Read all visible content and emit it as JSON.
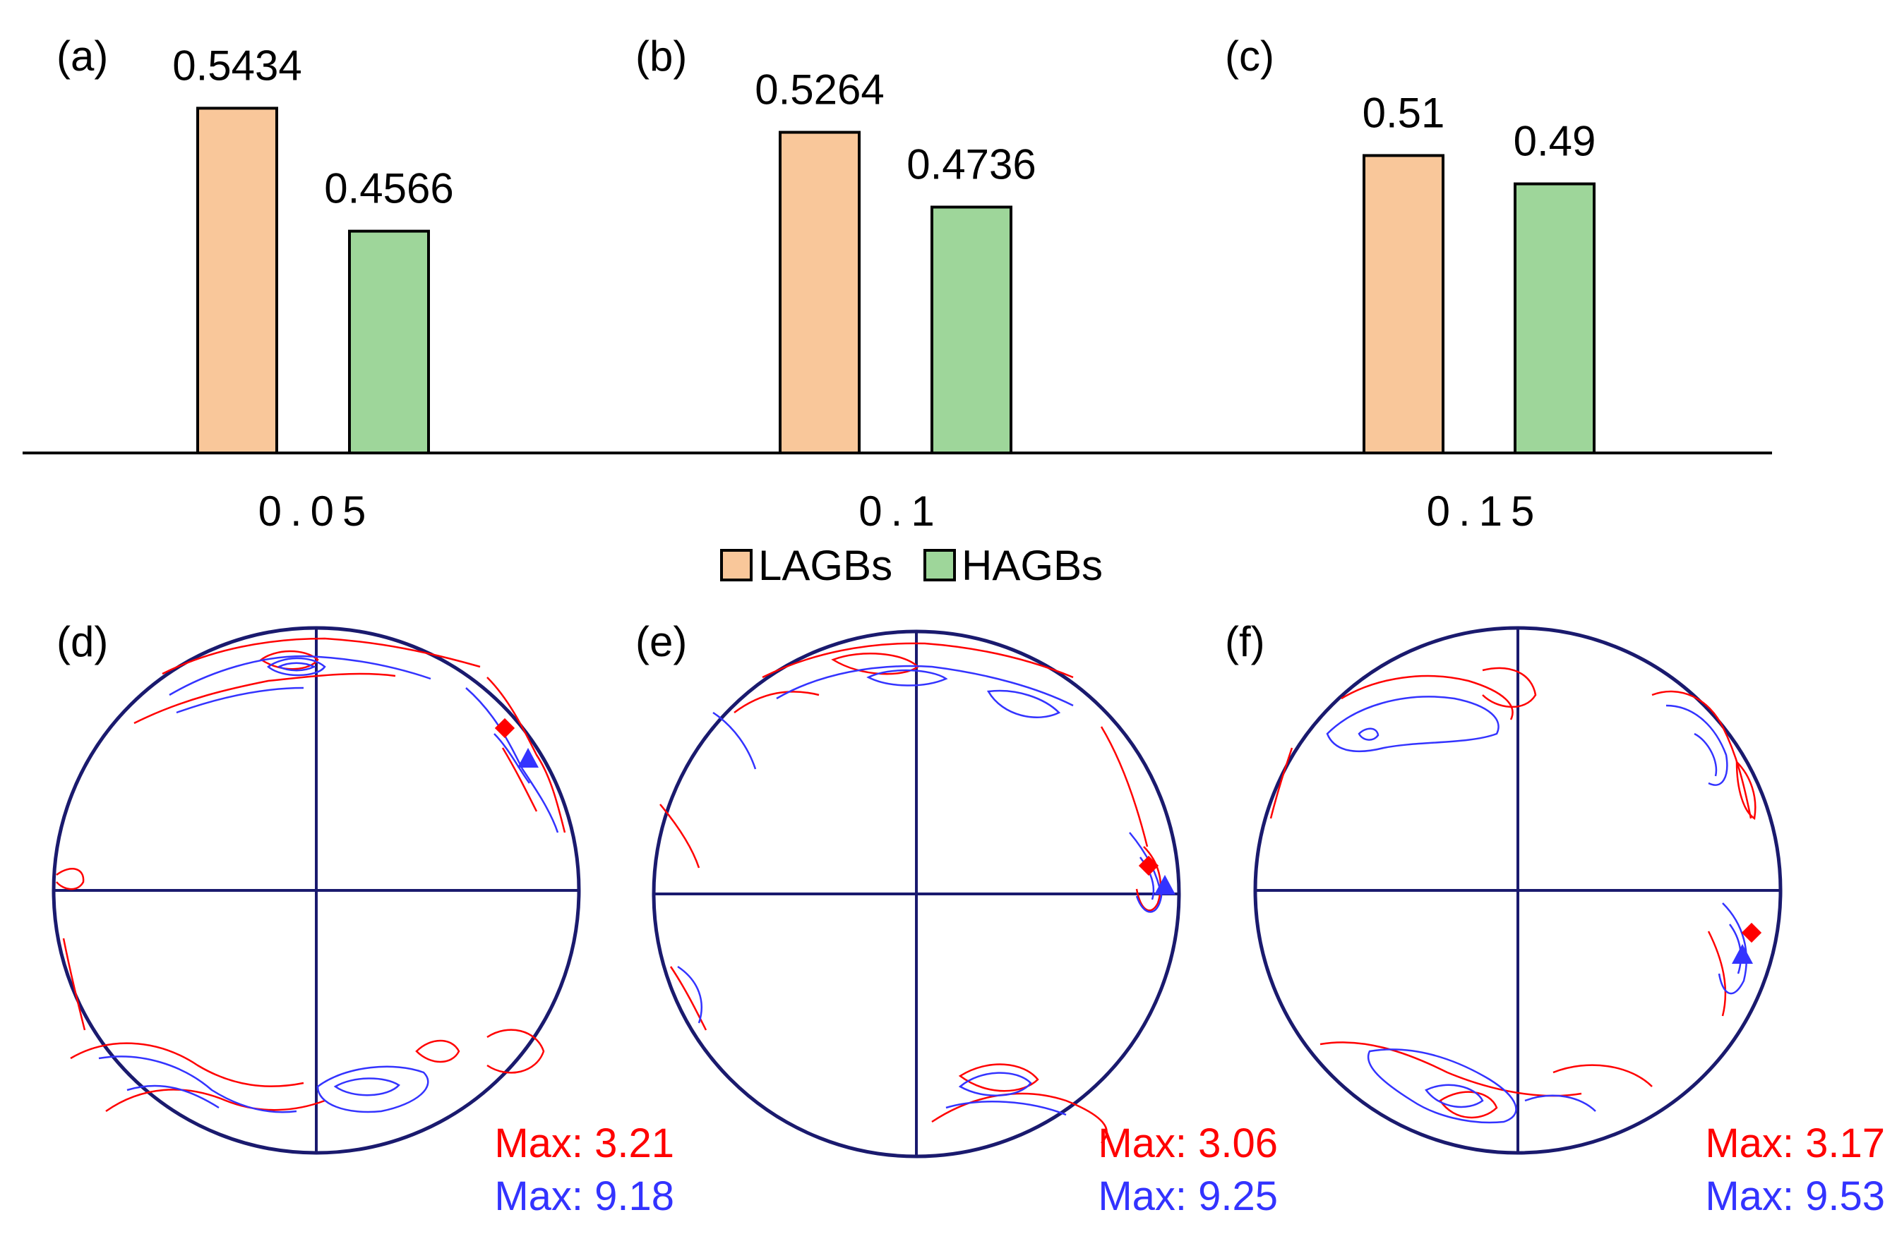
{
  "chart_data": [
    {
      "type": "bar",
      "panel_labels": [
        "(a)",
        "(b)",
        "(c)"
      ],
      "categories": [
        "0.05",
        "0.1",
        "0.15"
      ],
      "series": [
        {
          "name": "LAGBs",
          "values": [
            0.5434,
            0.5264,
            0.51
          ],
          "value_labels": [
            "0.5434",
            "0.5264",
            "0.51"
          ]
        },
        {
          "name": "HAGBs",
          "values": [
            0.4566,
            0.4736,
            0.49
          ],
          "value_labels": [
            "0.4566",
            "0.4736",
            "0.49"
          ]
        }
      ],
      "title": "",
      "xlabel": "",
      "ylabel": "",
      "ylim": [
        0.3,
        0.57
      ],
      "legend": {
        "position": "bottom-center",
        "items": [
          "LAGBs",
          "HAGBs"
        ]
      }
    },
    {
      "type": "pole_figure",
      "panels": [
        {
          "label": "(d)",
          "max_red": "Max: 3.21",
          "max_blue": "Max: 9.18"
        },
        {
          "label": "(e)",
          "max_red": "Max: 3.06",
          "max_blue": "Max: 9.25"
        },
        {
          "label": "(f)",
          "max_red": "Max: 3.17",
          "max_blue": "Max: 9.53"
        }
      ]
    }
  ],
  "colors": {
    "lagbs": "#f9c79a",
    "hagbs": "#9ed69a",
    "red_series": "#ff0000",
    "blue_series": "#3333ff",
    "circle": "#1a1a6e"
  }
}
